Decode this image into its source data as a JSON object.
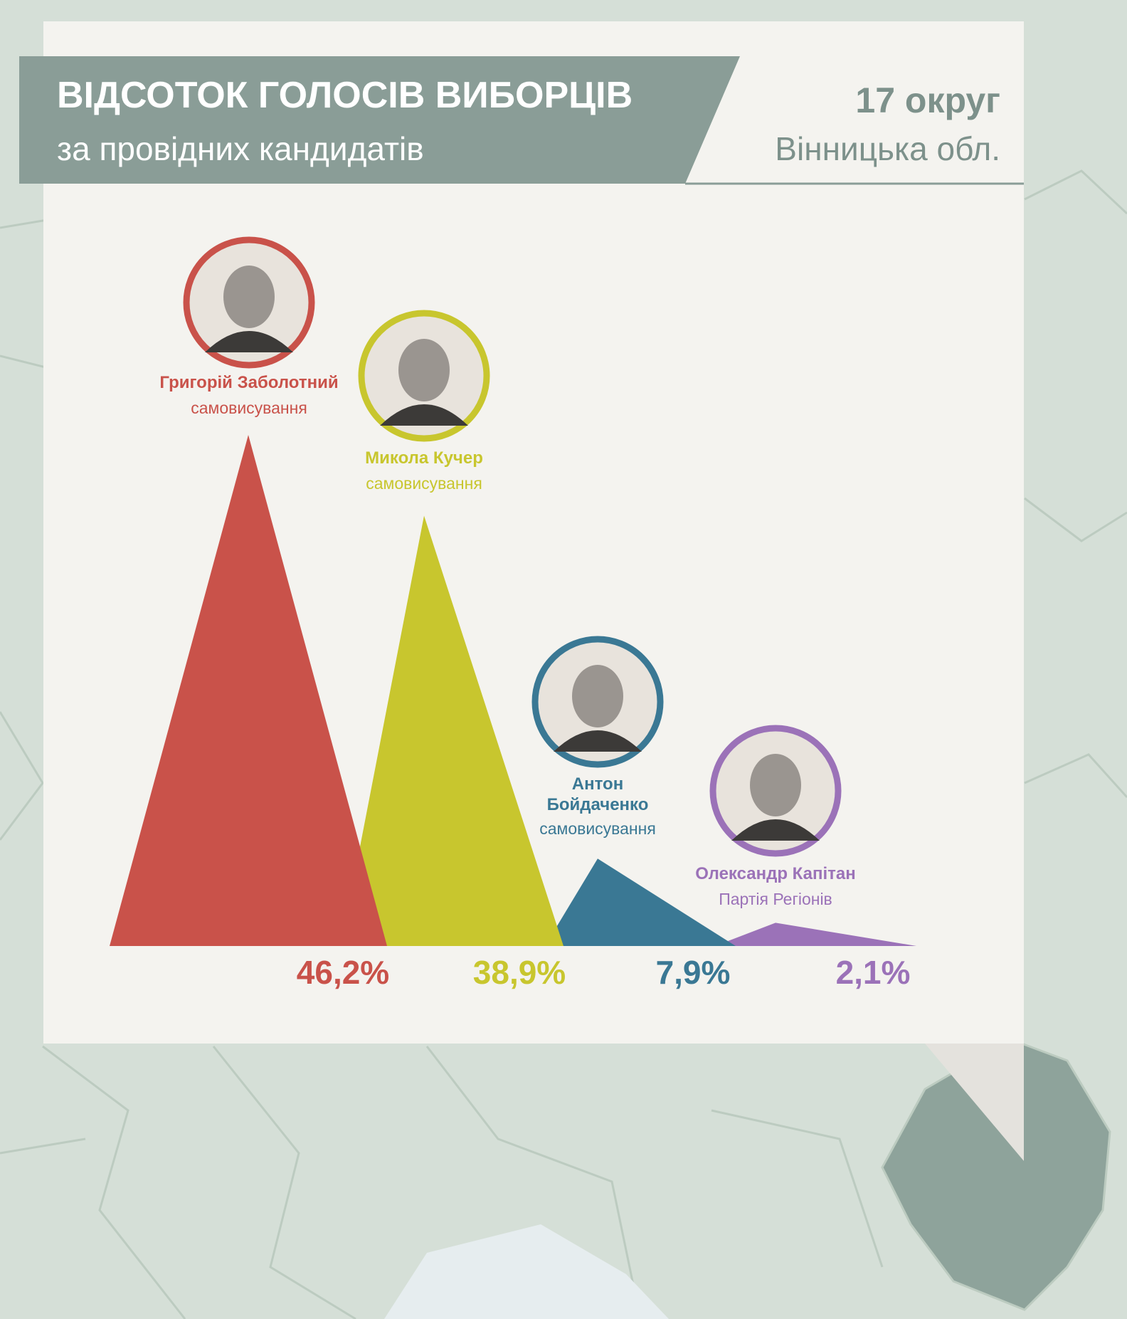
{
  "header": {
    "title": "ВІДСОТОК ГОЛОСІВ ВИБОРЦІВ",
    "subtitle": "за провідних кандидатів",
    "district": "17 округ",
    "region": "Вінницька обл."
  },
  "chart_data": {
    "type": "triangle",
    "categories": [
      "Григорій Заболотний",
      "Микола Кучер",
      "Антон Бойдаченко",
      "Олександр Капітан"
    ],
    "parties": [
      "самовисування",
      "самовисування",
      "самовисування",
      "Партія Регіонів"
    ],
    "values": [
      46.2,
      38.9,
      7.9,
      2.1
    ],
    "value_labels": [
      "46,2%",
      "38,9%",
      "7,9%",
      "2,1%"
    ],
    "colors": [
      "#c9524a",
      "#c8c62e",
      "#3a7894",
      "#9b72b8"
    ]
  }
}
